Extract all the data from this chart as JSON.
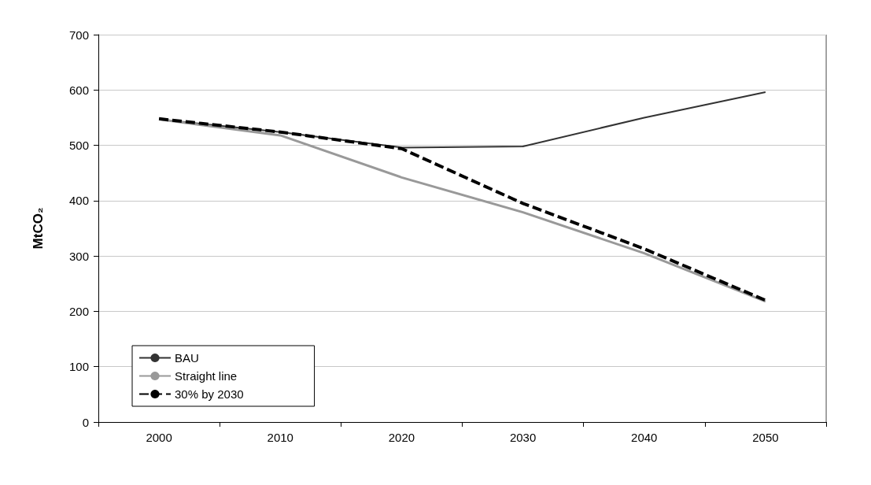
{
  "chart_data": {
    "type": "line",
    "ylabel": "MtCO₂",
    "categories": [
      "2000",
      "2010",
      "2020",
      "2030",
      "2040",
      "2050"
    ],
    "series": [
      {
        "name": "BAU",
        "color": "#333333",
        "values": [
          547,
          524,
          496,
          498,
          550,
          596
        ],
        "line_style": "solid"
      },
      {
        "name": "Straight line",
        "color": "#999999",
        "values": [
          547,
          518,
          442,
          379,
          305,
          218
        ],
        "line_style": "solid"
      },
      {
        "name": "30% by 2030",
        "color": "#000000",
        "values": [
          548,
          524,
          494,
          395,
          313,
          220
        ],
        "line_style": "dashed"
      }
    ],
    "ylim": [
      0,
      700
    ],
    "yticks": [
      0,
      100,
      200,
      300,
      400,
      500,
      600,
      700
    ],
    "grid": "y",
    "legend": "bottom left",
    "marker": "none"
  }
}
